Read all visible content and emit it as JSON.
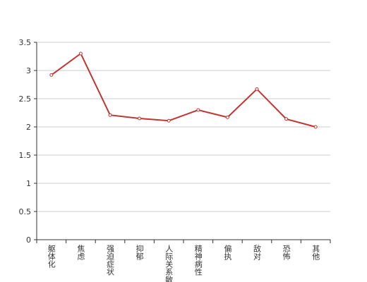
{
  "chart_data": {
    "type": "line",
    "categories": [
      "躯体化",
      "焦虑",
      "强迫症状",
      "抑郁",
      "人际关系敏感",
      "精神病性",
      "偏执",
      "敌对",
      "恐怖",
      "其他"
    ],
    "series": [
      {
        "color": "#c23531",
        "values": [
          2.92,
          3.3,
          2.21,
          2.15,
          2.11,
          2.3,
          2.17,
          2.67,
          2.14,
          2.0
        ]
      }
    ],
    "ylim": [
      0,
      3.5
    ],
    "yticks": [
      0,
      0.5,
      1,
      1.5,
      2,
      2.5,
      3,
      3.5
    ],
    "grid": true
  }
}
